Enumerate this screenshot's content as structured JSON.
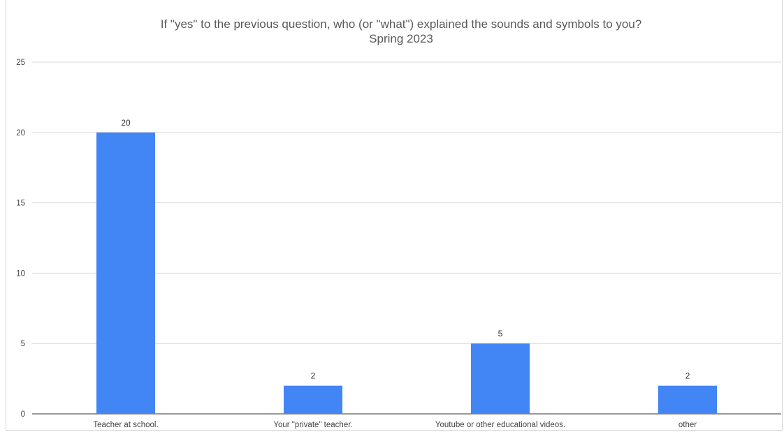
{
  "chart_data": {
    "type": "bar",
    "title": "If \"yes\" to the previous question, who (or \"what\") explained the sounds and symbols to you?",
    "subtitle": "Spring 2023",
    "categories": [
      "Teacher at school.",
      "Your \"private\" teacher.",
      "Youtube or other educational videos.",
      "other"
    ],
    "values": [
      20,
      2,
      5,
      2
    ],
    "data_labels": [
      "20",
      "2",
      "5",
      "2"
    ],
    "y_ticks": [
      "0",
      "5",
      "10",
      "15",
      "20",
      "25"
    ],
    "ylim": [
      0,
      25
    ],
    "xlabel": "",
    "ylabel": "",
    "grid": true,
    "legend": "none",
    "bar_color": "#4285f4",
    "grid_color": "#d9d9d9"
  }
}
